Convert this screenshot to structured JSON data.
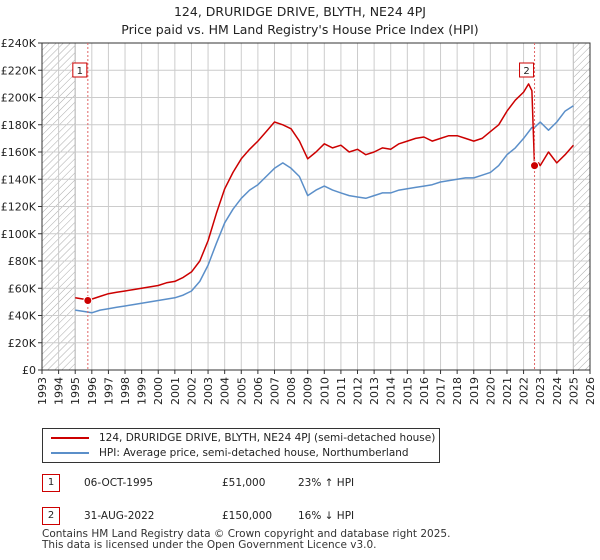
{
  "title_line1": "124, DRURIDGE DRIVE, BLYTH, NE24 4PJ",
  "title_line2": "Price paid vs. HM Land Registry's House Price Index (HPI)",
  "legend": {
    "series1": "124, DRURIDGE DRIVE, BLYTH, NE24 4PJ (semi-detached house)",
    "series2": "HPI: Average price, semi-detached house, Northumberland"
  },
  "sales": [
    {
      "num": "1",
      "date": "06-OCT-1995",
      "price": "£51,000",
      "hpi": "23% ↑ HPI"
    },
    {
      "num": "2",
      "date": "31-AUG-2022",
      "price": "£150,000",
      "hpi": "16% ↓ HPI"
    }
  ],
  "footer_line1": "Contains HM Land Registry data © Crown copyright and database right 2025.",
  "footer_line2": "This data is licensed under the Open Government Licence v3.0.",
  "colors": {
    "property": "#cc0000",
    "hpi": "#5b8fc9",
    "grid": "#cccccc",
    "hatch": "#999999"
  },
  "chart_data": {
    "type": "line",
    "title": "124, DRURIDGE DRIVE, BLYTH, NE24 4PJ",
    "subtitle": "Price paid vs. HM Land Registry's House Price Index (HPI)",
    "xlim": [
      1993,
      2026
    ],
    "ylim": [
      0,
      240000
    ],
    "y_ticks": [
      0,
      20000,
      40000,
      60000,
      80000,
      100000,
      120000,
      140000,
      160000,
      180000,
      200000,
      220000,
      240000
    ],
    "y_tick_labels": [
      "£0",
      "£20K",
      "£40K",
      "£60K",
      "£80K",
      "£100K",
      "£120K",
      "£140K",
      "£160K",
      "£180K",
      "£200K",
      "£220K",
      "£240K"
    ],
    "x_ticks": [
      1993,
      1994,
      1995,
      1996,
      1997,
      1998,
      1999,
      2000,
      2001,
      2002,
      2003,
      2004,
      2005,
      2006,
      2007,
      2008,
      2009,
      2010,
      2011,
      2012,
      2013,
      2014,
      2015,
      2016,
      2017,
      2018,
      2019,
      2020,
      2021,
      2022,
      2023,
      2024,
      2025,
      2026
    ],
    "x_tick_labels": [
      "1993",
      "1994",
      "1995",
      "1996",
      "1997",
      "1998",
      "1999",
      "2000",
      "2001",
      "2002",
      "2003",
      "2004",
      "2005",
      "2006",
      "2007",
      "2008",
      "2009",
      "2010",
      "2011",
      "2012",
      "2013",
      "2014",
      "2015",
      "2016",
      "2017",
      "2018",
      "2019",
      "2020",
      "2021",
      "2022",
      "2023",
      "2024",
      "2025",
      "2026"
    ],
    "hatched_ranges": [
      [
        1993,
        1995.0
      ],
      [
        2025.0,
        2026
      ]
    ],
    "grid": true,
    "series": [
      {
        "name": "124, DRURIDGE DRIVE, BLYTH, NE24 4PJ (semi-detached house)",
        "color": "#cc0000",
        "x": [
          1995.0,
          1995.5,
          1995.76,
          1996.0,
          1996.5,
          1997.0,
          1997.5,
          1998.0,
          1998.5,
          1999.0,
          1999.5,
          2000.0,
          2000.5,
          2001.0,
          2001.5,
          2002.0,
          2002.5,
          2003.0,
          2003.5,
          2004.0,
          2004.5,
          2005.0,
          2005.5,
          2006.0,
          2006.5,
          2007.0,
          2007.5,
          2008.0,
          2008.5,
          2009.0,
          2009.5,
          2010.0,
          2010.5,
          2011.0,
          2011.5,
          2012.0,
          2012.5,
          2013.0,
          2013.5,
          2014.0,
          2014.5,
          2015.0,
          2015.5,
          2016.0,
          2016.5,
          2017.0,
          2017.5,
          2018.0,
          2018.5,
          2019.0,
          2019.5,
          2020.0,
          2020.5,
          2021.0,
          2021.5,
          2022.0,
          2022.3,
          2022.5,
          2022.66,
          2022.9,
          2023.0,
          2023.5,
          2024.0,
          2024.5,
          2025.0
        ],
        "y": [
          53000,
          52000,
          51000,
          52000,
          54000,
          56000,
          57000,
          58000,
          59000,
          60000,
          61000,
          62000,
          64000,
          65000,
          68000,
          72000,
          80000,
          95000,
          115000,
          133000,
          145000,
          155000,
          162000,
          168000,
          175000,
          182000,
          180000,
          177000,
          168000,
          155000,
          160000,
          166000,
          163000,
          165000,
          160000,
          162000,
          158000,
          160000,
          163000,
          162000,
          166000,
          168000,
          170000,
          171000,
          168000,
          170000,
          172000,
          172000,
          170000,
          168000,
          170000,
          175000,
          180000,
          190000,
          198000,
          204000,
          210000,
          205000,
          150000,
          152000,
          150000,
          160000,
          152000,
          158000,
          165000
        ]
      },
      {
        "name": "HPI: Average price, semi-detached house, Northumberland",
        "color": "#5b8fc9",
        "x": [
          1995.0,
          1995.5,
          1996.0,
          1996.5,
          1997.0,
          1997.5,
          1998.0,
          1998.5,
          1999.0,
          1999.5,
          2000.0,
          2000.5,
          2001.0,
          2001.5,
          2002.0,
          2002.5,
          2003.0,
          2003.5,
          2004.0,
          2004.5,
          2005.0,
          2005.5,
          2006.0,
          2006.5,
          2007.0,
          2007.5,
          2008.0,
          2008.5,
          2009.0,
          2009.5,
          2010.0,
          2010.5,
          2011.0,
          2011.5,
          2012.0,
          2012.5,
          2013.0,
          2013.5,
          2014.0,
          2014.5,
          2015.0,
          2015.5,
          2016.0,
          2016.5,
          2017.0,
          2017.5,
          2018.0,
          2018.5,
          2019.0,
          2019.5,
          2020.0,
          2020.5,
          2021.0,
          2021.5,
          2022.0,
          2022.5,
          2022.66,
          2023.0,
          2023.5,
          2024.0,
          2024.5,
          2025.0
        ],
        "y": [
          44000,
          43000,
          42000,
          44000,
          45000,
          46000,
          47000,
          48000,
          49000,
          50000,
          51000,
          52000,
          53000,
          55000,
          58000,
          65000,
          77000,
          93000,
          108000,
          118000,
          126000,
          132000,
          136000,
          142000,
          148000,
          152000,
          148000,
          142000,
          128000,
          132000,
          135000,
          132000,
          130000,
          128000,
          127000,
          126000,
          128000,
          130000,
          130000,
          132000,
          133000,
          134000,
          135000,
          136000,
          138000,
          139000,
          140000,
          141000,
          141000,
          143000,
          145000,
          150000,
          158000,
          163000,
          170000,
          178000,
          178000,
          182000,
          176000,
          182000,
          190000,
          194000
        ]
      }
    ],
    "markers": [
      {
        "label": "1",
        "x": 1995.76,
        "y": 51000
      },
      {
        "label": "2",
        "x": 2022.66,
        "y": 150000
      }
    ]
  }
}
